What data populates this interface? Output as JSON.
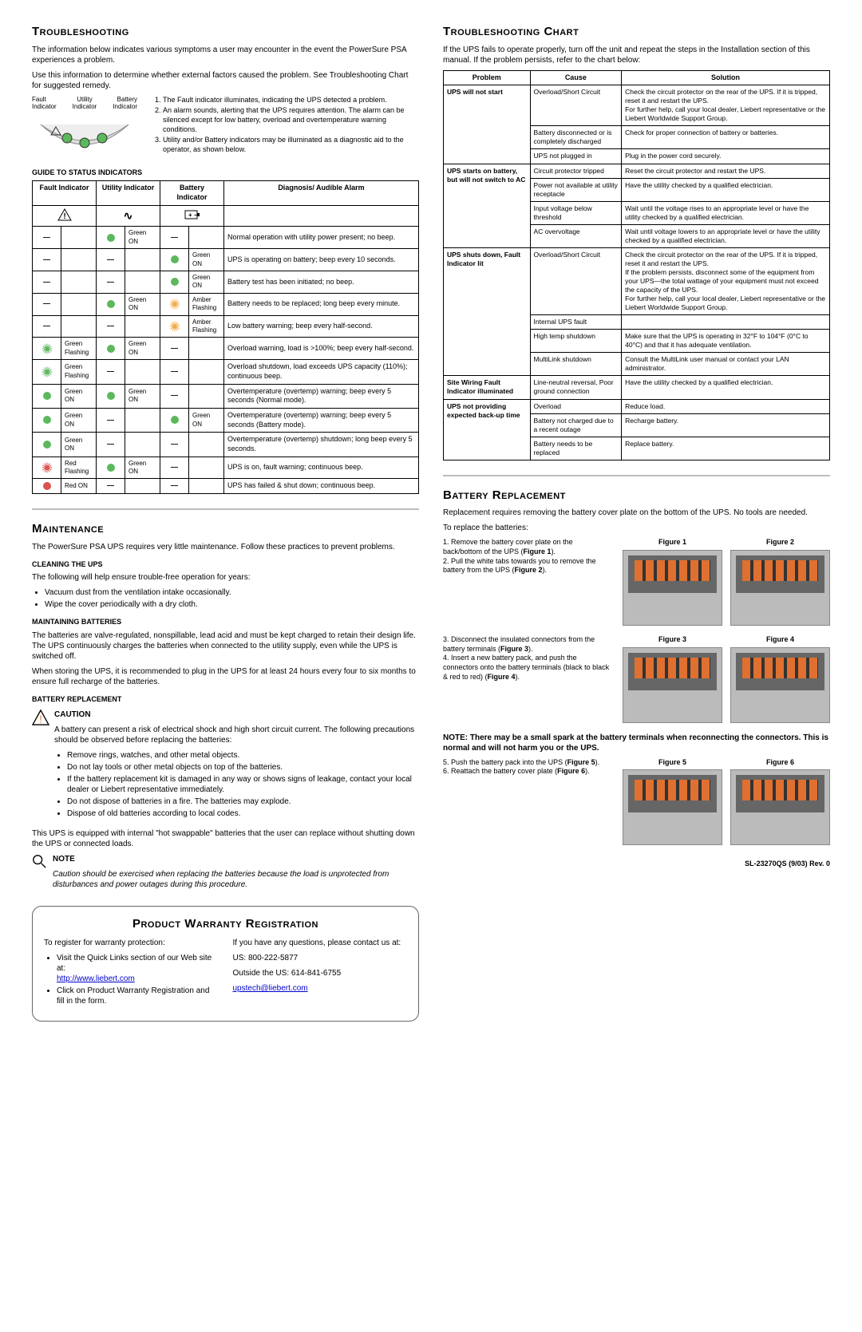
{
  "left": {
    "h_troubleshooting": "Troubleshooting",
    "intro1": "The information below indicates various symptoms a user may encounter in the event the PowerSure PSA experiences a problem.",
    "intro2": "Use this information to determine whether external factors caused the problem. See Troubleshooting Chart for suggested remedy.",
    "diag_labels": {
      "utility": "Utility Indicator",
      "fault": "Fault Indicator",
      "battery": "Battery Indicator"
    },
    "diag_notes": [
      "The Fault indicator illuminates, indicating the UPS detected a problem.",
      "An alarm sounds, alerting that the UPS requires attention. The alarm can be silenced except for low battery, overload and overtemperature warning conditions.",
      "Utility and/or Battery indicators may be illuminated as a diagnostic aid to the operator, as shown below."
    ],
    "guide_title": "GUIDE TO STATUS INDICATORS",
    "status_headers": [
      "Fault Indicator",
      "Utility Indicator",
      "Battery Indicator",
      "Diagnosis/ Audible Alarm"
    ],
    "status_rows": [
      {
        "f": {
          "t": "dash"
        },
        "u": {
          "t": "dot",
          "c": "green",
          "l": "Green ON"
        },
        "b": {
          "t": "dash"
        },
        "d": "Normal operation with utility power present; no beep."
      },
      {
        "f": {
          "t": "dash"
        },
        "u": {
          "t": "dash"
        },
        "b": {
          "t": "dot",
          "c": "green",
          "l": "Green ON"
        },
        "d": "UPS is operating on battery; beep every 10 seconds."
      },
      {
        "f": {
          "t": "dash"
        },
        "u": {
          "t": "dash"
        },
        "b": {
          "t": "dot",
          "c": "green",
          "l": "Green ON"
        },
        "d": "Battery test has been initiated; no beep."
      },
      {
        "f": {
          "t": "dash"
        },
        "u": {
          "t": "dot",
          "c": "green",
          "l": "Green ON"
        },
        "b": {
          "t": "burst",
          "c": "amber",
          "l": "Amber Flashing"
        },
        "d": "Battery needs to be replaced; long beep every minute."
      },
      {
        "f": {
          "t": "dash"
        },
        "u": {
          "t": "dash"
        },
        "b": {
          "t": "burst",
          "c": "amber",
          "l": "Amber Flashing"
        },
        "d": "Low battery warning; beep every half-second."
      },
      {
        "f": {
          "t": "burst",
          "c": "green",
          "l": "Green Flashing"
        },
        "u": {
          "t": "dot",
          "c": "green",
          "l": "Green ON"
        },
        "b": {
          "t": "dash"
        },
        "d": "Overload warning, load is >100%; beep every half-second."
      },
      {
        "f": {
          "t": "burst",
          "c": "green",
          "l": "Green Flashing"
        },
        "u": {
          "t": "dash"
        },
        "b": {
          "t": "dash"
        },
        "d": "Overload shutdown, load exceeds UPS capacity (110%); continuous beep."
      },
      {
        "f": {
          "t": "dot",
          "c": "green",
          "l": "Green ON"
        },
        "u": {
          "t": "dot",
          "c": "green",
          "l": "Green ON"
        },
        "b": {
          "t": "dash"
        },
        "d": "Overtemperature (overtemp) warning; beep every 5 seconds (Normal mode)."
      },
      {
        "f": {
          "t": "dot",
          "c": "green",
          "l": "Green ON"
        },
        "u": {
          "t": "dash"
        },
        "b": {
          "t": "dot",
          "c": "green",
          "l": "Green ON"
        },
        "d": "Overtemperature (overtemp) warning; beep every 5 seconds (Battery mode)."
      },
      {
        "f": {
          "t": "dot",
          "c": "green",
          "l": "Green ON"
        },
        "u": {
          "t": "dash"
        },
        "b": {
          "t": "dash"
        },
        "d": "Overtemperature (overtemp) shutdown; long beep every 5 seconds."
      },
      {
        "f": {
          "t": "burst",
          "c": "red",
          "l": "Red Flashing"
        },
        "u": {
          "t": "dot",
          "c": "green",
          "l": "Green ON"
        },
        "b": {
          "t": "dash"
        },
        "d": "UPS is on, fault warning; continuous beep."
      },
      {
        "f": {
          "t": "dot",
          "c": "red",
          "l": "Red ON"
        },
        "u": {
          "t": "dash"
        },
        "b": {
          "t": "dash"
        },
        "d": "UPS has failed & shut down; continuous beep."
      }
    ],
    "h_maintenance": "Maintenance",
    "maint_intro": "The PowerSure PSA UPS requires very little maintenance. Follow these practices to prevent problems.",
    "h_cleaning": "CLEANING THE UPS",
    "clean_intro": "The following will help ensure trouble-free operation for years:",
    "clean_items": [
      "Vacuum dust from the ventilation intake occasionally.",
      "Wipe the cover periodically with a dry cloth."
    ],
    "h_maintbat": "MAINTAINING BATTERIES",
    "maintbat1": "The batteries are valve-regulated, nonspillable, lead acid and must be kept charged to retain their design life. The UPS continuously charges the batteries when connected to the utility supply, even while the UPS is switched off.",
    "maintbat2": "When storing the UPS, it is recommended to plug in the UPS for at least 24 hours every four to six months to ensure full recharge of the batteries.",
    "h_batrepl": "BATTERY REPLACEMENT",
    "caution_label": "CAUTION",
    "caution_text": "A battery can present a risk of electrical shock and high short circuit current. The following precautions should be observed before replacing the batteries:",
    "caution_items": [
      "Remove rings, watches, and other metal objects.",
      "Do not lay tools or other metal objects on top of the batteries.",
      "If the battery replacement kit is damaged in any way or shows signs of leakage, contact your local dealer or Liebert representative immediately.",
      "Do not dispose of batteries in a fire. The batteries may explode.",
      "Dispose of old batteries according to local codes."
    ],
    "hotswap": "This UPS is equipped with internal \"hot swappable\" batteries that the user can replace without shutting down the UPS or connected loads.",
    "note_label": "NOTE",
    "note_text": "Caution should be exercised when replacing the batteries because the load is unprotected from disturbances and power outages during this procedure.",
    "h_warranty": "Product Warranty Registration",
    "warranty_l_intro": "To register for warranty protection:",
    "warranty_l_items": [
      "Visit the Quick Links section of our Web site at:",
      "Click on Product Warranty Registration and fill in the form."
    ],
    "warranty_url": "http://www.liebert.com",
    "warranty_r_intro": "If you have any questions, please contact us at:",
    "warranty_phone1": "US: 800-222-5877",
    "warranty_phone2": "Outside the US: 614-841-6755",
    "warranty_email": "upstech@liebert.com"
  },
  "right": {
    "h_chart": "Troubleshooting Chart",
    "chart_intro": "If the UPS fails to operate properly, turn off the unit and repeat the steps in the Installation section of this manual. If the problem persists, refer to the chart below:",
    "chart_headers": [
      "Problem",
      "Cause",
      "Solution"
    ],
    "chart_rows": [
      {
        "p": "UPS will not start",
        "pr": 3,
        "c": "Overload/Short Circuit",
        "s": "Check the circuit protector on the rear of the UPS. If it is tripped, reset it and restart the UPS.\nFor further help, call your local dealer, Liebert representative or the Liebert Worldwide Support Group."
      },
      {
        "c": "Battery disconnected or is completely discharged",
        "s": "Check for proper connection of battery or batteries."
      },
      {
        "c": "UPS not plugged in",
        "s": "Plug in the power cord securely."
      },
      {
        "p": "UPS starts on battery, but will not switch to AC",
        "pr": 4,
        "c": "Circuit protector tripped",
        "s": "Reset the circuit protector and restart the UPS."
      },
      {
        "c": "Power not available at utility receptacle",
        "s": "Have the utility checked by a qualified electrician."
      },
      {
        "c": "Input voltage below threshold",
        "s": "Wait until the voltage rises to an appropriate level or have the utility checked by a qualified electrician."
      },
      {
        "c": "AC overvoltage",
        "s": "Wait until voltage lowers to an appropriate level or have the utility checked by a qualified electrician."
      },
      {
        "p": "UPS shuts down, Fault Indicator lit",
        "pr": 4,
        "c": "Overload/Short Circuit",
        "s": "Check the circuit protector on the rear of the UPS. If it is tripped, reset it and restart the UPS.\nIf the problem persists, disconnect some of the equipment from your UPS—the total wattage of your equipment must not exceed the capacity of the UPS.\nFor further help, call your local dealer, Liebert representative or the Liebert Worldwide Support Group."
      },
      {
        "c": "Internal UPS fault",
        "s": ""
      },
      {
        "c": "High temp shutdown",
        "s": "Make sure that the UPS is operating in 32°F to 104°F (0°C to 40°C) and that it has adequate ventilation."
      },
      {
        "c": "MultiLink shutdown",
        "s": "Consult the MultiLink user manual or contact your LAN administrator."
      },
      {
        "p": "Site Wiring Fault Indicator illuminated",
        "pr": 1,
        "c": "Line-neutral reversal, Poor ground connection",
        "s": "Have the utility checked by a qualified electrician."
      },
      {
        "p": "UPS not providing expected back-up time",
        "pr": 3,
        "c": "Overload",
        "s": "Reduce load."
      },
      {
        "c": "Battery not charged due to a recent outage",
        "s": "Recharge battery."
      },
      {
        "c": "Battery needs to be replaced",
        "s": "Replace battery."
      }
    ],
    "h_battery": "Battery Replacement",
    "bat_intro": "Replacement requires removing the battery cover plate on the bottom of the UPS. No tools are needed.",
    "bat_replace_label": "To replace the batteries:",
    "steps12": "1. Remove the battery cover plate on the back/bottom of the UPS (Figure 1).\n2. Pull the white tabs towards you to remove the battery from the UPS (Figure 2).",
    "steps34": "3. Disconnect the insulated connectors from the battery terminals (Figure 3).\n4. Insert a new battery pack, and push the connectors onto the battery terminals (black to black & red to red) (Figure 4).",
    "note_bold": "NOTE: There may be a small spark at the battery terminals when reconnecting the connectors. This is normal and will not harm you or the UPS.",
    "steps56": "5. Push the battery pack into the UPS (Figure 5).\n6. Reattach the battery cover plate (Figure 6).",
    "figs": [
      "Figure 1",
      "Figure 2",
      "Figure 3",
      "Figure 4",
      "Figure 5",
      "Figure 6"
    ],
    "footer": "SL-23270QS (9/03) Rev. 0"
  },
  "colors": {
    "green": "#5cb85c",
    "amber": "#f0ad4e",
    "red": "#d9534f",
    "divider": "#bdbdbd"
  }
}
